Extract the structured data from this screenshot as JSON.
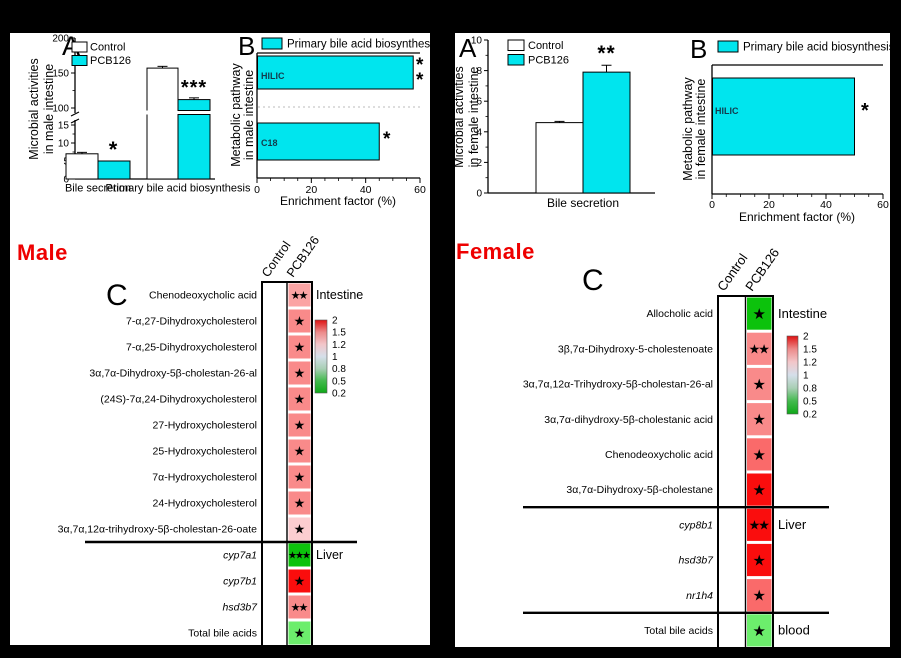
{
  "side_labels": {
    "male": "Male",
    "female": "Female",
    "color": "#ee0000"
  },
  "colors": {
    "bar_cyan": "#00e5ee",
    "bar_white": "#ffffff",
    "inner_label": "#123b4d",
    "page_bg": "#000000",
    "panel_bg": "#ffffff",
    "scale_gradient": [
      "#de1212",
      "#ec8a8a",
      "#f2c6c9",
      "#d5dfea",
      "#a9cfb5",
      "#44ba4e",
      "#0fa818"
    ]
  },
  "chart_data": [
    {
      "id": "male-A",
      "group": "Male",
      "panel": "A",
      "type": "bar",
      "ylabel_lines": [
        "Microbial activities",
        "in male intestine"
      ],
      "legend": [
        {
          "name": "Control",
          "color": "#ffffff"
        },
        {
          "name": "PCB126",
          "color": "#00e5ee"
        }
      ],
      "categories": [
        "Bile secretion",
        "Primary bile acid biosynthesis"
      ],
      "series": [
        {
          "name": "Control",
          "values": [
            7,
            157
          ],
          "errors": [
            0.4,
            2.5
          ]
        },
        {
          "name": "PCB126",
          "values": [
            5,
            112
          ],
          "errors": [
            0,
            2.5
          ]
        }
      ],
      "annotations": [
        "*",
        "***"
      ],
      "axis_break": {
        "lower_range": [
          0,
          15
        ],
        "upper_range": [
          100,
          200
        ]
      },
      "yticks_lower": [
        0,
        5,
        10,
        15
      ],
      "yticks_upper": [
        100,
        150,
        200
      ]
    },
    {
      "id": "male-B",
      "group": "Male",
      "panel": "B",
      "type": "bar-horizontal",
      "legend_label": "Primary bile acid biosynthesis",
      "ylabel_lines": [
        "Metabolic pathway",
        "in male intestine"
      ],
      "xlabel": "Enrichment factor (%)",
      "categories": [
        "HILIC",
        "C18"
      ],
      "values": [
        57.5,
        45
      ],
      "annotations": [
        [
          "*",
          "*"
        ],
        [
          "*"
        ]
      ],
      "xlim": [
        0,
        60
      ],
      "xticks": [
        0,
        20,
        40,
        60
      ]
    },
    {
      "id": "male-C",
      "group": "Male",
      "panel": "C",
      "type": "heatmap",
      "columns": [
        "Control",
        "PCB126"
      ],
      "scale_ticks": [
        "2",
        "1.5",
        "1.2",
        "1",
        "0.8",
        "0.5",
        "0.2"
      ],
      "rows": [
        {
          "label": "Chenodeoxycholic acid",
          "color": "#fba4a4",
          "stars": "★★",
          "section": "Intestine"
        },
        {
          "label": "7-α,27-Dihydroxycholesterol",
          "color": "#f98a8a",
          "stars": "★"
        },
        {
          "label": "7-α,25-Dihydroxycholesterol",
          "color": "#f98a8a",
          "stars": "★"
        },
        {
          "label": "3α,7α-Dihydroxy-5β-cholestan-26-al",
          "color": "#f98a8a",
          "stars": "★"
        },
        {
          "label": "(24S)-7α,24-Dihydroxycholesterol",
          "color": "#f98a8a",
          "stars": "★"
        },
        {
          "label": "27-Hydroxycholesterol",
          "color": "#f98a8a",
          "stars": "★"
        },
        {
          "label": "25-Hydroxycholesterol",
          "color": "#f98a8a",
          "stars": "★"
        },
        {
          "label": "7α-Hydroxycholesterol",
          "color": "#f98a8a",
          "stars": "★"
        },
        {
          "label": "24-Hydroxycholesterol",
          "color": "#f98a8a",
          "stars": "★"
        },
        {
          "label": "3α,7α,12α-trihydroxy-5β-cholestan-26-oate",
          "color": "#fccdd0",
          "stars": "★"
        },
        {
          "label": "cyp7a1",
          "italic": true,
          "color": "#0cc20c",
          "stars": "★★★",
          "section": "Liver",
          "divider_before": true
        },
        {
          "label": "cyp7b1",
          "italic": true,
          "color": "#fa0d0d",
          "stars": "★"
        },
        {
          "label": "hsd3b7",
          "italic": true,
          "color": "#f98a8a",
          "stars": "★★"
        },
        {
          "label": "Total bile acids",
          "color": "#6cee6c",
          "stars": "★"
        }
      ]
    },
    {
      "id": "female-A",
      "group": "Female",
      "panel": "A",
      "type": "bar",
      "ylabel_lines": [
        "Microbial activities",
        "in female intestine"
      ],
      "legend": [
        {
          "name": "Control",
          "color": "#ffffff"
        },
        {
          "name": "PCB126",
          "color": "#00e5ee"
        }
      ],
      "categories": [
        "Bile secretion"
      ],
      "series": [
        {
          "name": "Control",
          "values": [
            4.6
          ],
          "errors": [
            0.08
          ]
        },
        {
          "name": "PCB126",
          "values": [
            7.9
          ],
          "errors": [
            0.45
          ]
        }
      ],
      "annotations": [
        "**"
      ],
      "ylim": [
        0,
        10
      ],
      "yticks": [
        0,
        2,
        4,
        6,
        8,
        10
      ]
    },
    {
      "id": "female-B",
      "group": "Female",
      "panel": "B",
      "type": "bar-horizontal",
      "legend_label": "Primary bile acid biosynthesis",
      "ylabel_lines": [
        "Metabolic pathway",
        "in female intestine"
      ],
      "xlabel": "Enrichment factor (%)",
      "categories": [
        "HILIC"
      ],
      "values": [
        50
      ],
      "annotations": [
        [
          "*"
        ]
      ],
      "xlim": [
        0,
        60
      ],
      "xticks": [
        0,
        20,
        40,
        60
      ]
    },
    {
      "id": "female-C",
      "group": "Female",
      "panel": "C",
      "type": "heatmap",
      "columns": [
        "Control",
        "PCB126"
      ],
      "scale_ticks": [
        "2",
        "1.5",
        "1.2",
        "1",
        "0.8",
        "0.5",
        "0.2"
      ],
      "rows": [
        {
          "label": "Allocholic acid",
          "color": "#0cc20c",
          "stars": "★",
          "section": "Intestine"
        },
        {
          "label": "3β,7α-Dihydroxy-5-cholestenoate",
          "color": "#f98a8a",
          "stars": "★★"
        },
        {
          "label": "3α,7α,12α-Trihydroxy-5β-cholestan-26-al",
          "color": "#f98a8a",
          "stars": "★"
        },
        {
          "label": "3α,7α-dihydroxy-5β-cholestanic acid",
          "color": "#f98a8a",
          "stars": "★"
        },
        {
          "label": "Chenodeoxycholic acid",
          "color": "#fa6a6a",
          "stars": "★"
        },
        {
          "label": "3α,7α-Dihydroxy-5β-cholestane",
          "color": "#fa0d0d",
          "stars": "★"
        },
        {
          "label": "cyp8b1",
          "italic": true,
          "color": "#fa0d0d",
          "stars": "★★",
          "section": "Liver",
          "divider_before": true
        },
        {
          "label": "hsd3b7",
          "italic": true,
          "color": "#fa0d0d",
          "stars": "★"
        },
        {
          "label": "nr1h4",
          "italic": true,
          "color": "#fa6a6a",
          "stars": "★"
        },
        {
          "label": "Total bile acids",
          "color": "#6cee6c",
          "stars": "★",
          "section": "blood",
          "divider_before": true
        }
      ]
    }
  ]
}
